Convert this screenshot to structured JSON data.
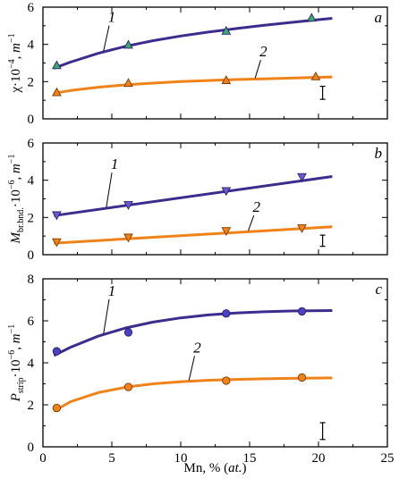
{
  "chart_data": {
    "type": "scatter",
    "xlabel": {
      "main": "Mn, % (",
      "ital": "at.",
      "close": ")"
    },
    "xlim": [
      0,
      25
    ],
    "xticks": [
      "0",
      "5",
      "10",
      "15",
      "20",
      "25"
    ],
    "colors": {
      "series1": "#3d2c8d",
      "series2": "#f0821a"
    },
    "panels": [
      {
        "letter": "a",
        "ylabel": {
          "pre": "χ·10",
          "sup": "−4",
          "mid": ", ",
          "unit": "m",
          "sup2": "−1"
        },
        "ylim": [
          0,
          6
        ],
        "yticks": [
          "0",
          "2",
          "4",
          "6"
        ],
        "error_bar": {
          "x": 20.3,
          "y": 1.4,
          "half": 0.35
        },
        "series": [
          {
            "name": "1",
            "color": "#3d2c8d",
            "marker": "triangle-up",
            "marker_fill": "#3aa870",
            "x": [
              1.0,
              6.2,
              13.3,
              19.5
            ],
            "y": [
              2.85,
              3.95,
              4.7,
              5.4
            ],
            "fit_x": [
              0.8,
              2,
              4,
              6,
              8,
              10,
              12,
              14,
              16,
              18,
              19.5,
              21
            ],
            "fit_y": [
              2.72,
              3.05,
              3.52,
              3.9,
              4.2,
              4.45,
              4.66,
              4.85,
              5.02,
              5.18,
              5.29,
              5.4
            ],
            "label_at": [
              5.0,
              5.2
            ]
          },
          {
            "name": "2",
            "color": "#f0821a",
            "marker": "triangle-up",
            "marker_fill": "#f0821a",
            "x": [
              1.0,
              6.2,
              13.3,
              19.8
            ],
            "y": [
              1.4,
              1.9,
              2.05,
              2.25
            ],
            "fit_x": [
              0.8,
              2,
              4,
              6,
              8,
              10,
              12,
              14,
              16,
              18,
              21
            ],
            "fit_y": [
              1.38,
              1.52,
              1.7,
              1.83,
              1.92,
              2.0,
              2.06,
              2.11,
              2.15,
              2.19,
              2.25
            ],
            "label_at": [
              16.0,
              3.35
            ]
          }
        ]
      },
      {
        "letter": "b",
        "ylabel": {
          "pre": "M",
          "sub": "br.bnd.",
          "mid": "·10",
          "sup": "−6",
          "mid2": ", ",
          "unit": "m",
          "sup2": "−1"
        },
        "ylim": [
          0,
          6
        ],
        "yticks": [
          "0",
          "2",
          "4",
          "6"
        ],
        "error_bar": {
          "x": 20.3,
          "y": 0.75,
          "half": 0.3
        },
        "series": [
          {
            "name": "1",
            "color": "#3d2c8d",
            "marker": "triangle-down",
            "marker_fill": "#6a5acd",
            "x": [
              1.0,
              6.2,
              13.3,
              18.8
            ],
            "y": [
              2.15,
              2.7,
              3.45,
              4.2
            ],
            "fit_x": [
              0.8,
              21
            ],
            "fit_y": [
              2.1,
              4.2
            ],
            "label_at": [
              5.2,
              4.6
            ]
          },
          {
            "name": "2",
            "color": "#f0821a",
            "marker": "triangle-down",
            "marker_fill": "#f0821a",
            "x": [
              1.0,
              6.2,
              13.3,
              18.8
            ],
            "y": [
              0.7,
              0.95,
              1.3,
              1.45
            ],
            "fit_x": [
              0.8,
              21
            ],
            "fit_y": [
              0.62,
              1.5
            ],
            "label_at": [
              15.5,
              2.3
            ]
          }
        ]
      },
      {
        "letter": "c",
        "ylabel": {
          "pre": "P",
          "sub": "strip",
          "mid": "·10",
          "sup": "−6",
          "mid2": ", ",
          "unit": "m",
          "sup2": "−1"
        },
        "ylim": [
          0,
          8
        ],
        "yticks": [
          "0",
          "2",
          "4",
          "6",
          "8"
        ],
        "error_bar": {
          "x": 20.3,
          "y": 0.75,
          "half": 0.4
        },
        "series": [
          {
            "name": "1",
            "color": "#3d2c8d",
            "marker": "circle",
            "marker_fill": "#4a40c0",
            "x": [
              1.0,
              6.2,
              13.3,
              18.8
            ],
            "y": [
              4.55,
              5.45,
              6.35,
              6.45
            ],
            "fit_x": [
              0.8,
              2,
              4,
              6,
              8,
              10,
              12,
              14,
              16,
              18,
              21
            ],
            "fit_y": [
              4.35,
              4.74,
              5.27,
              5.66,
              5.94,
              6.14,
              6.28,
              6.37,
              6.43,
              6.47,
              6.49
            ],
            "label_at": [
              5.0,
              7.2
            ]
          },
          {
            "name": "2",
            "color": "#f0821a",
            "marker": "circle",
            "marker_fill": "#f0821a",
            "x": [
              1.0,
              6.2,
              13.3,
              18.8
            ],
            "y": [
              1.85,
              2.85,
              3.15,
              3.3
            ],
            "fit_x": [
              0.8,
              2,
              4,
              6,
              8,
              10,
              12,
              14,
              16,
              18,
              21
            ],
            "fit_y": [
              1.7,
              2.15,
              2.58,
              2.84,
              3.0,
              3.1,
              3.17,
              3.21,
              3.24,
              3.26,
              3.28
            ],
            "label_at": [
              11.2,
              4.5
            ]
          }
        ]
      }
    ]
  }
}
